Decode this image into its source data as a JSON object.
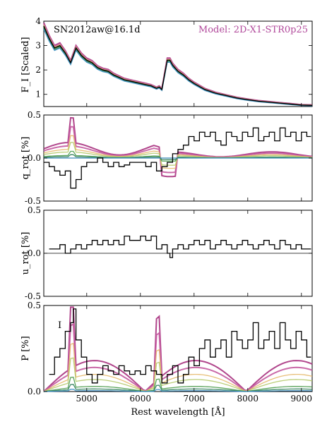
{
  "chart_data": [
    {
      "type": "line",
      "panel": "flux",
      "ylabel": "F_I [Scaled]",
      "ylim": [
        0.5,
        4.0
      ],
      "yticks": [
        1,
        2,
        3,
        4
      ],
      "xlim": [
        4200,
        9200
      ],
      "annotation_left": "SN2012aw@16.1d",
      "annotation_right": "Model: 2D-X1-STR0p25",
      "observed": {
        "x": [
          4200,
          4300,
          4400,
          4500,
          4600,
          4700,
          4800,
          4900,
          5000,
          5100,
          5200,
          5300,
          5400,
          5500,
          5600,
          5700,
          5800,
          5900,
          6000,
          6100,
          6200,
          6300,
          6350,
          6400,
          6450,
          6500,
          6550,
          6600,
          6700,
          6800,
          6900,
          7000,
          7200,
          7400,
          7600,
          7800,
          8000,
          8200,
          8400,
          8600,
          8800,
          9000,
          9200
        ],
        "y": [
          3.8,
          3.3,
          2.9,
          3.0,
          2.7,
          2.3,
          2.9,
          2.6,
          2.4,
          2.3,
          2.1,
          2.0,
          1.95,
          1.8,
          1.7,
          1.6,
          1.55,
          1.5,
          1.45,
          1.4,
          1.35,
          1.25,
          1.3,
          1.2,
          1.8,
          2.4,
          2.4,
          2.2,
          1.95,
          1.8,
          1.6,
          1.45,
          1.2,
          1.05,
          0.95,
          0.85,
          0.78,
          0.72,
          0.68,
          0.64,
          0.6,
          0.56,
          0.55
        ]
      },
      "model_colors": [
        "#a8327f",
        "#c45aa0",
        "#e6b86a",
        "#b5c96a",
        "#4a9a4a",
        "#2e7d5a",
        "#3b8fc4"
      ]
    },
    {
      "type": "line",
      "panel": "q_rot",
      "ylabel": "q_rot [%]",
      "ylim": [
        -0.5,
        0.5
      ],
      "yticks": [
        -0.5,
        0.0,
        0.5
      ],
      "observed": {
        "x": [
          4200,
          4300,
          4400,
          4500,
          4600,
          4700,
          4800,
          4900,
          5000,
          5100,
          5200,
          5300,
          5400,
          5500,
          5600,
          5700,
          5800,
          5900,
          6000,
          6100,
          6200,
          6300,
          6400,
          6500,
          6600,
          6700,
          6800,
          6900,
          7000,
          7100,
          7200,
          7300,
          7400,
          7500,
          7600,
          7700,
          7800,
          7900,
          8000,
          8100,
          8200,
          8300,
          8400,
          8500,
          8600,
          8700,
          8800,
          8900,
          9000,
          9100
        ],
        "y": [
          -0.05,
          -0.1,
          -0.15,
          -0.2,
          -0.15,
          -0.35,
          -0.25,
          -0.1,
          -0.05,
          -0.05,
          0.0,
          -0.05,
          -0.1,
          -0.05,
          -0.1,
          -0.08,
          -0.05,
          -0.05,
          -0.05,
          -0.1,
          -0.05,
          -0.15,
          -0.1,
          -0.05,
          0.05,
          0.1,
          0.15,
          0.25,
          0.2,
          0.3,
          0.25,
          0.3,
          0.2,
          0.15,
          0.3,
          0.25,
          0.2,
          0.3,
          0.25,
          0.35,
          0.2,
          0.25,
          0.3,
          0.2,
          0.35,
          0.25,
          0.3,
          0.2,
          0.3,
          0.25
        ]
      }
    },
    {
      "type": "line",
      "panel": "u_rot",
      "ylabel": "u_rot [%]",
      "ylim": [
        -0.5,
        0.5
      ],
      "yticks": [
        -0.5,
        0.0,
        0.5
      ],
      "observed": {
        "x": [
          4300,
          4400,
          4500,
          4600,
          4700,
          4800,
          4900,
          5000,
          5100,
          5200,
          5300,
          5400,
          5500,
          5600,
          5700,
          5800,
          5900,
          6000,
          6100,
          6200,
          6300,
          6400,
          6500,
          6550,
          6600,
          6700,
          6800,
          6900,
          7000,
          7100,
          7200,
          7300,
          7400,
          7500,
          7600,
          7700,
          7800,
          7900,
          8000,
          8100,
          8200,
          8300,
          8400,
          8500,
          8600,
          8700,
          8800,
          8900,
          9000,
          9100
        ],
        "y": [
          0.05,
          0.05,
          0.1,
          0.0,
          0.05,
          0.1,
          0.05,
          0.1,
          0.15,
          0.1,
          0.15,
          0.1,
          0.15,
          0.1,
          0.2,
          0.15,
          0.15,
          0.2,
          0.15,
          0.2,
          0.05,
          0.1,
          0.0,
          -0.05,
          0.05,
          0.1,
          0.05,
          0.1,
          0.15,
          0.1,
          0.15,
          0.05,
          0.1,
          0.15,
          0.1,
          0.05,
          0.1,
          0.15,
          0.1,
          0.05,
          0.1,
          0.15,
          0.1,
          0.05,
          0.15,
          0.1,
          0.05,
          0.1,
          0.05,
          0.05
        ]
      }
    },
    {
      "type": "line",
      "panel": "P",
      "ylabel": "P [%]",
      "ylim": [
        0.0,
        0.5
      ],
      "yticks": [
        0.0,
        0.5
      ],
      "xlabel": "Rest wavelength [Å]",
      "xticks": [
        5000,
        6000,
        7000,
        8000,
        9000
      ],
      "annotation_left": "I",
      "observed": {
        "x": [
          4300,
          4400,
          4500,
          4600,
          4700,
          4750,
          4800,
          4900,
          5000,
          5100,
          5200,
          5300,
          5400,
          5500,
          5600,
          5700,
          5800,
          5900,
          6000,
          6100,
          6200,
          6300,
          6400,
          6500,
          6600,
          6700,
          6800,
          6900,
          7000,
          7100,
          7200,
          7300,
          7400,
          7500,
          7600,
          7700,
          7800,
          7900,
          8000,
          8100,
          8200,
          8300,
          8400,
          8500,
          8600,
          8700,
          8800,
          8900,
          9000,
          9100
        ],
        "y": [
          0.1,
          0.2,
          0.25,
          0.35,
          0.4,
          0.48,
          0.3,
          0.2,
          0.1,
          0.05,
          0.1,
          0.15,
          0.12,
          0.1,
          0.15,
          0.12,
          0.1,
          0.12,
          0.1,
          0.15,
          0.12,
          0.1,
          0.05,
          0.1,
          0.15,
          0.05,
          0.1,
          0.2,
          0.15,
          0.25,
          0.3,
          0.2,
          0.25,
          0.3,
          0.2,
          0.35,
          0.3,
          0.25,
          0.3,
          0.4,
          0.25,
          0.3,
          0.35,
          0.25,
          0.4,
          0.3,
          0.25,
          0.35,
          0.3,
          0.2
        ]
      }
    }
  ],
  "x_axis": {
    "label": "Rest wavelength [Å]",
    "tick_labels": [
      "5000",
      "6000",
      "7000",
      "8000",
      "9000"
    ]
  }
}
